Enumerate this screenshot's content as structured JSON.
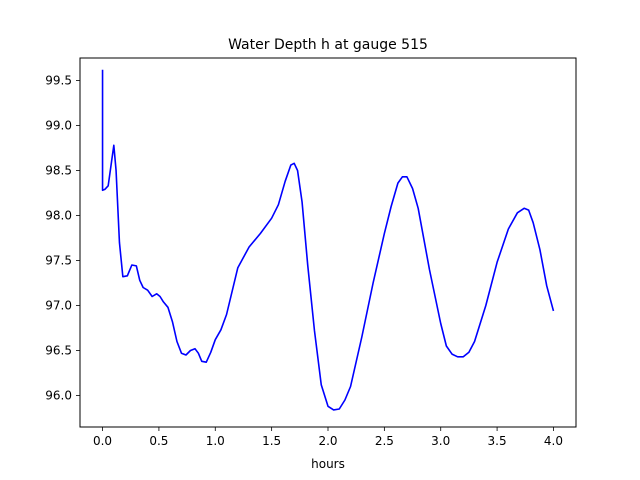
{
  "chart_data": {
    "type": "line",
    "title": "Water Depth h at gauge 515",
    "xlabel": "hours",
    "ylabel": "",
    "xlim": [
      -0.2,
      4.2
    ],
    "ylim": [
      95.65,
      99.75
    ],
    "xticks": [
      0.0,
      0.5,
      1.0,
      1.5,
      2.0,
      2.5,
      3.0,
      3.5,
      4.0
    ],
    "xtick_labels": [
      "0.0",
      "0.5",
      "1.0",
      "1.5",
      "2.0",
      "2.5",
      "3.0",
      "3.5",
      "4.0"
    ],
    "yticks": [
      96.0,
      96.5,
      97.0,
      97.5,
      98.0,
      98.5,
      99.0,
      99.5
    ],
    "ytick_labels": [
      "96.0",
      "96.5",
      "97.0",
      "97.5",
      "98.0",
      "98.5",
      "99.0",
      "99.5"
    ],
    "grid": false,
    "legend": "none",
    "series": [
      {
        "color": "#0000ff",
        "x": [
          0.0,
          0.0,
          0.02,
          0.05,
          0.08,
          0.1,
          0.12,
          0.15,
          0.18,
          0.22,
          0.26,
          0.3,
          0.33,
          0.36,
          0.4,
          0.44,
          0.48,
          0.51,
          0.54,
          0.58,
          0.62,
          0.66,
          0.7,
          0.74,
          0.78,
          0.82,
          0.85,
          0.88,
          0.92,
          0.96,
          1.0,
          1.05,
          1.1,
          1.2,
          1.3,
          1.4,
          1.5,
          1.56,
          1.62,
          1.67,
          1.7,
          1.73,
          1.77,
          1.82,
          1.88,
          1.94,
          2.0,
          2.05,
          2.1,
          2.15,
          2.2,
          2.3,
          2.4,
          2.5,
          2.56,
          2.62,
          2.66,
          2.7,
          2.75,
          2.8,
          2.9,
          3.0,
          3.05,
          3.1,
          3.15,
          3.2,
          3.25,
          3.3,
          3.4,
          3.5,
          3.6,
          3.68,
          3.74,
          3.78,
          3.82,
          3.88,
          3.94,
          4.0
        ],
        "y": [
          99.62,
          98.28,
          98.29,
          98.33,
          98.6,
          98.78,
          98.5,
          97.7,
          97.32,
          97.33,
          97.45,
          97.44,
          97.28,
          97.2,
          97.17,
          97.1,
          97.13,
          97.1,
          97.04,
          96.98,
          96.82,
          96.6,
          96.47,
          96.45,
          96.5,
          96.52,
          96.47,
          96.38,
          96.37,
          96.48,
          96.62,
          96.73,
          96.9,
          97.42,
          97.65,
          97.8,
          97.97,
          98.12,
          98.38,
          98.56,
          98.58,
          98.5,
          98.15,
          97.45,
          96.72,
          96.12,
          95.88,
          95.84,
          95.85,
          95.95,
          96.1,
          96.65,
          97.25,
          97.8,
          98.1,
          98.36,
          98.43,
          98.43,
          98.3,
          98.08,
          97.4,
          96.8,
          96.55,
          96.46,
          96.43,
          96.43,
          96.48,
          96.6,
          97.0,
          97.48,
          97.85,
          98.03,
          98.08,
          98.06,
          97.92,
          97.62,
          97.22,
          96.94
        ]
      }
    ]
  }
}
